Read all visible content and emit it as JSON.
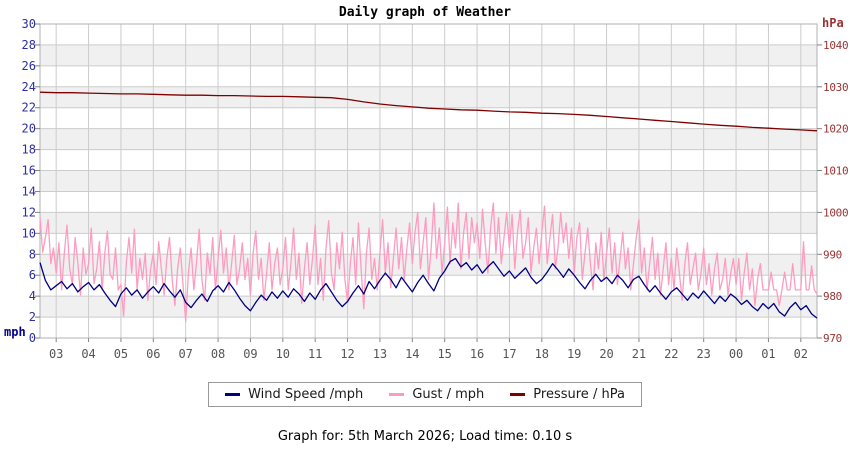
{
  "caption": "Graph for: 5th March 2026; Load time: 0.10 s",
  "chart_data": {
    "type": "line",
    "title": "Daily graph of Weather",
    "grid": true,
    "legend_position": "bottom-center",
    "x_axis": {
      "kind": "time-of-day-hours",
      "start_time": "02:30",
      "end_time": "02:30",
      "hours_span": 24,
      "tick_labels": [
        "03",
        "04",
        "05",
        "06",
        "07",
        "08",
        "09",
        "10",
        "11",
        "12",
        "13",
        "14",
        "15",
        "16",
        "17",
        "18",
        "19",
        "20",
        "21",
        "22",
        "23",
        "00",
        "01",
        "02"
      ]
    },
    "y_left": {
      "label": "mph",
      "min": 0,
      "max": 30,
      "tick_step": 2,
      "tick_labels": [
        "0",
        "2",
        "4",
        "6",
        "8",
        "10",
        "12",
        "14",
        "16",
        "18",
        "20",
        "22",
        "24",
        "26",
        "28",
        "30"
      ],
      "color": "#2e2ea0",
      "unit_color": "#000090"
    },
    "y_right": {
      "label": "hPa",
      "min": 970,
      "max": 1045,
      "tick_step": 10,
      "tick_labels": [
        "970",
        "980",
        "990",
        "1000",
        "1010",
        "1020",
        "1030",
        "1040"
      ],
      "color": "#993333",
      "unit_color": "#993333"
    },
    "colors": {
      "band": "#f0f0f0",
      "grid": "#cccccc",
      "border": "#b0b0b0",
      "tick": "#808080",
      "x_label": "#555555"
    },
    "series": [
      {
        "id": "wind-speed",
        "name": "Wind Speed /mph",
        "color": "#000080",
        "axis": "left",
        "interval_minutes": 10,
        "values": [
          7.2,
          5.5,
          4.6,
          5.0,
          5.4,
          4.7,
          5.2,
          4.4,
          4.9,
          5.3,
          4.6,
          5.1,
          4.3,
          3.6,
          3.0,
          4.2,
          4.8,
          4.1,
          4.6,
          3.8,
          4.4,
          4.9,
          4.3,
          5.2,
          4.5,
          3.9,
          4.6,
          3.4,
          2.9,
          3.6,
          4.2,
          3.5,
          4.5,
          5.0,
          4.4,
          5.3,
          4.6,
          3.8,
          3.1,
          2.6,
          3.4,
          4.1,
          3.6,
          4.4,
          3.8,
          4.5,
          3.9,
          4.7,
          4.2,
          3.5,
          4.3,
          3.7,
          4.6,
          5.2,
          4.4,
          3.6,
          3.0,
          3.5,
          4.3,
          5.0,
          4.2,
          5.4,
          4.7,
          5.5,
          6.2,
          5.6,
          4.8,
          5.8,
          5.1,
          4.4,
          5.3,
          6.0,
          5.2,
          4.5,
          5.7,
          6.4,
          7.3,
          7.6,
          6.8,
          7.2,
          6.5,
          7.0,
          6.2,
          6.8,
          7.3,
          6.6,
          5.9,
          6.4,
          5.7,
          6.2,
          6.7,
          5.8,
          5.2,
          5.6,
          6.3,
          7.1,
          6.5,
          5.8,
          6.6,
          6.0,
          5.3,
          4.7,
          5.5,
          6.1,
          5.4,
          5.8,
          5.2,
          6.0,
          5.5,
          4.8,
          5.6,
          5.9,
          5.1,
          4.4,
          5.0,
          4.3,
          3.7,
          4.4,
          4.8,
          4.2,
          3.6,
          4.3,
          3.8,
          4.5,
          3.9,
          3.3,
          4.0,
          3.5,
          4.2,
          3.8,
          3.2,
          3.6,
          3.0,
          2.6,
          3.3,
          2.8,
          3.3,
          2.5,
          2.1,
          2.9,
          3.4,
          2.7,
          3.1,
          2.3,
          1.9
        ]
      },
      {
        "id": "gust",
        "name": "Gust / mph",
        "color": "#ff9bbf",
        "axis": "left",
        "interval_minutes": 5,
        "values": [
          11.5,
          8.2,
          9.6,
          11.3,
          7.1,
          8.6,
          6.2,
          9.1,
          4.6,
          8.1,
          10.8,
          6.6,
          5.1,
          9.6,
          7.2,
          4.1,
          8.6,
          6.1,
          7.1,
          10.5,
          5.2,
          6.6,
          9.2,
          4.6,
          8.1,
          10.2,
          6.1,
          5.6,
          8.6,
          4.6,
          5.1,
          2.1,
          7.2,
          9.6,
          6.2,
          10.4,
          4.6,
          7.6,
          5.6,
          8.1,
          3.6,
          6.6,
          8.1,
          5.1,
          9.2,
          6.6,
          4.1,
          7.6,
          9.6,
          5.6,
          3.1,
          6.6,
          8.6,
          5.1,
          1.6,
          6.2,
          8.6,
          4.6,
          7.2,
          10.4,
          5.6,
          3.6,
          8.1,
          6.1,
          9.6,
          4.6,
          7.6,
          10.3,
          6.2,
          8.6,
          4.6,
          7.1,
          9.8,
          5.1,
          6.6,
          9.1,
          5.6,
          7.6,
          4.1,
          8.1,
          10.2,
          5.6,
          7.6,
          3.6,
          6.2,
          9.1,
          4.6,
          7.1,
          8.6,
          5.1,
          6.6,
          9.6,
          4.6,
          7.1,
          10.5,
          5.6,
          8.1,
          3.3,
          6.6,
          9.1,
          5.1,
          7.6,
          10.8,
          5.1,
          7.6,
          3.6,
          8.6,
          11.2,
          6.2,
          4.6,
          9.1,
          6.6,
          10.1,
          5.6,
          3.4,
          7.1,
          9.6,
          5.1,
          11.0,
          6.6,
          2.8,
          8.1,
          10.5,
          5.6,
          7.6,
          4.6,
          8.1,
          11.3,
          6.2,
          9.1,
          4.8,
          7.6,
          10.5,
          6.6,
          9.6,
          5.6,
          8.6,
          11.0,
          7.1,
          10.1,
          12.0,
          6.6,
          9.1,
          11.5,
          5.6,
          8.6,
          12.9,
          7.6,
          10.5,
          6.2,
          9.1,
          12.5,
          7.1,
          11.0,
          8.6,
          12.9,
          6.6,
          10.1,
          12.0,
          7.6,
          11.5,
          9.1,
          11.0,
          7.6,
          12.3,
          9.1,
          6.2,
          10.5,
          12.9,
          8.1,
          11.5,
          7.1,
          9.6,
          12.0,
          8.6,
          11.8,
          6.6,
          10.1,
          12.2,
          7.6,
          9.1,
          11.5,
          6.2,
          8.6,
          10.5,
          7.1,
          10.1,
          12.6,
          7.1,
          9.6,
          11.8,
          6.6,
          8.6,
          12.0,
          9.1,
          11.0,
          7.6,
          10.5,
          6.2,
          9.6,
          11.0,
          5.6,
          8.1,
          10.5,
          7.1,
          4.6,
          9.1,
          6.6,
          10.1,
          5.6,
          8.1,
          10.5,
          6.2,
          9.1,
          5.1,
          7.6,
          10.1,
          6.6,
          8.6,
          4.6,
          7.1,
          9.6,
          11.3,
          6.2,
          8.6,
          4.6,
          7.1,
          9.6,
          5.6,
          8.1,
          4.1,
          6.6,
          9.1,
          5.1,
          7.6,
          4.6,
          8.6,
          6.2,
          3.6,
          7.1,
          9.1,
          5.1,
          6.6,
          8.1,
          4.6,
          6.2,
          8.6,
          5.1,
          7.1,
          4.1,
          6.6,
          8.1,
          4.6,
          5.6,
          7.6,
          4.1,
          6.2,
          7.6,
          5.1,
          7.6,
          3.6,
          6.2,
          8.1,
          4.6,
          6.6,
          3.1,
          5.6,
          7.1,
          4.6,
          4.6,
          4.6,
          6.3,
          4.6,
          4.6,
          3.1,
          4.6,
          6.3,
          4.6,
          4.6,
          7.1,
          4.6,
          4.6,
          4.6,
          9.2,
          4.6,
          4.6,
          6.9,
          4.6,
          4.2
        ]
      },
      {
        "id": "pressure",
        "name": "Pressure / hPa",
        "color": "#7f0000",
        "axis": "right",
        "interval_minutes": 30,
        "values": [
          1028.7,
          1028.6,
          1028.6,
          1028.5,
          1028.4,
          1028.3,
          1028.3,
          1028.2,
          1028.1,
          1028.0,
          1028.0,
          1027.9,
          1027.9,
          1027.8,
          1027.7,
          1027.7,
          1027.6,
          1027.5,
          1027.4,
          1027.0,
          1026.4,
          1025.9,
          1025.5,
          1025.2,
          1024.9,
          1024.7,
          1024.5,
          1024.4,
          1024.2,
          1024.0,
          1023.9,
          1023.7,
          1023.6,
          1023.4,
          1023.2,
          1022.9,
          1022.6,
          1022.3,
          1022.0,
          1021.7,
          1021.4,
          1021.1,
          1020.8,
          1020.6,
          1020.3,
          1020.1,
          1019.9,
          1019.7,
          1019.5
        ]
      }
    ]
  }
}
